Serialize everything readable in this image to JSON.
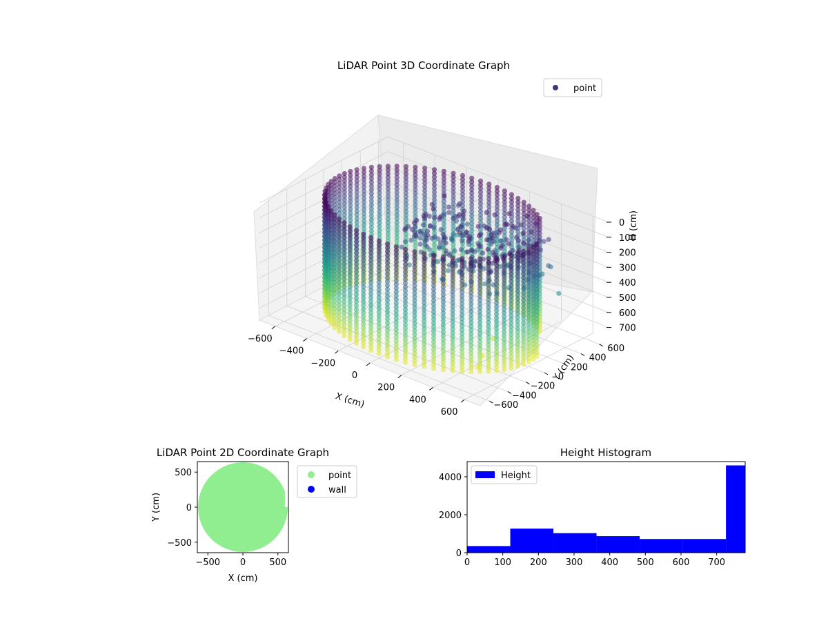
{
  "chart_data": [
    {
      "type": "scatter",
      "title": "LiDAR Point 3D Coordinate Graph",
      "xlabel": "X (cm)",
      "ylabel": "Y (cm)",
      "zlabel": "H (cm)",
      "xlim": [
        -700,
        700
      ],
      "ylim": [
        -700,
        700
      ],
      "zlim": [
        0,
        780
      ],
      "z_inverted": true,
      "x_ticks": [
        -600,
        -400,
        -200,
        0,
        200,
        400,
        600
      ],
      "y_ticks": [
        -600,
        -400,
        -200,
        0,
        200,
        400,
        600
      ],
      "z_ticks": [
        0,
        100,
        200,
        300,
        400,
        500,
        600,
        700
      ],
      "legend": {
        "position": "top-right",
        "entries": [
          "point"
        ]
      },
      "colormap": "viridis",
      "colors": {
        "marker": "#482878",
        "legend_marker": "#46327e"
      },
      "series": [
        {
          "name": "point",
          "description_values": {
            "wall_radius_cm": 600,
            "wall_columns": 72,
            "wall_height_range": [
              0,
              750
            ],
            "interior_x_range": [
              -150,
              500
            ],
            "interior_y_range": [
              -200,
              500
            ],
            "interior_height_range": [
              50,
              350
            ],
            "outliers": [
              {
                "x": 420,
                "y": -250,
                "h": 780
              },
              {
                "x": 380,
                "y": -120,
                "h": 760
              },
              {
                "x": 340,
                "y": 60,
                "h": 720
              },
              {
                "x": 560,
                "y": 180,
                "h": 250
              },
              {
                "x": 640,
                "y": 260,
                "h": 360
              }
            ]
          }
        }
      ]
    },
    {
      "type": "scatter",
      "title": "LiDAR Point 2D Coordinate Graph",
      "xlabel": "X (cm)",
      "ylabel": "Y (cm)",
      "xlim": [
        -650,
        650
      ],
      "ylim": [
        -650,
        650
      ],
      "x_ticks": [
        -500,
        0,
        500
      ],
      "y_ticks": [
        -500,
        0,
        500
      ],
      "legend": {
        "position": "outside-right",
        "entries": [
          "point",
          "wall"
        ]
      },
      "series": [
        {
          "name": "point",
          "color": "#90ee90",
          "description": "disc of radius ~630 cm centred at origin, clipped near x=600 on the right"
        },
        {
          "name": "wall",
          "color": "#0000ff"
        }
      ]
    },
    {
      "type": "bar",
      "title": "Height Histogram",
      "xlim": [
        0,
        780
      ],
      "ylim": [
        0,
        4800
      ],
      "x_ticks": [
        0,
        100,
        200,
        300,
        400,
        500,
        600,
        700
      ],
      "y_ticks": [
        0,
        2000,
        4000
      ],
      "legend": {
        "position": "top-left",
        "entries": [
          "Height"
        ]
      },
      "series": [
        {
          "name": "Height",
          "color": "#0000ff",
          "bin_edges": [
            0,
            121,
            242,
            363,
            484,
            605,
            726,
            780
          ],
          "values": [
            350,
            1270,
            1030,
            870,
            720,
            720,
            4600
          ]
        }
      ]
    }
  ]
}
